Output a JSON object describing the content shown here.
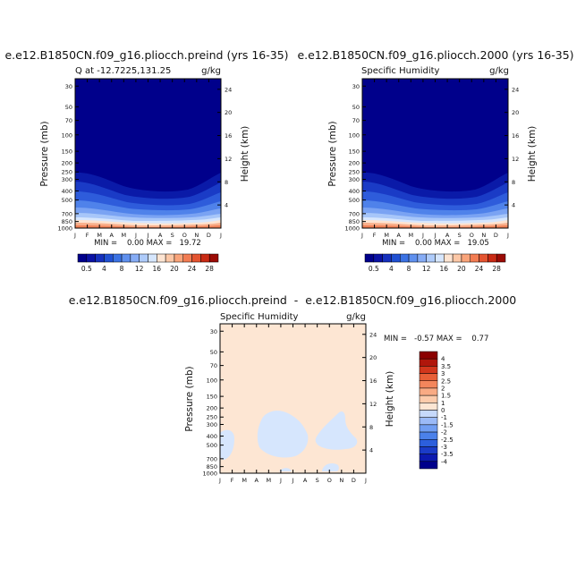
{
  "colors": {
    "seq_scale": [
      "#00008b",
      "#0a12a4",
      "#1530bd",
      "#2050d2",
      "#3b72e3",
      "#5f90ee",
      "#86acf5",
      "#aecbfa",
      "#d6e6fd",
      "#fde4d2",
      "#fcc7a6",
      "#f9a47a",
      "#f27c52",
      "#e45430",
      "#c92a14",
      "#9b0b05"
    ],
    "diff_scale": [
      "#00008b",
      "#0c1ab0",
      "#1b3cc8",
      "#2c5fdc",
      "#4b81ea",
      "#719ef2",
      "#9bbaf7",
      "#c6d9fb",
      "#fde6d3",
      "#fccbab",
      "#f9ab84",
      "#f3865c",
      "#e85f37",
      "#d2361c",
      "#b0160b",
      "#8b0000"
    ],
    "diff_fill": "#fde6d3",
    "diff_neg": "#d6e6fd"
  },
  "chart_data": [
    {
      "type": "contour",
      "title": "e.e12.B1850CN.f09_g16.pliocch.preind (yrs 16-35)",
      "subtitle_left": "Q at -12.7225,131.25",
      "subtitle_right": "g/kg",
      "xlabel": "",
      "ylabel": "Pressure (mb)",
      "y2label": "Height (km)",
      "x_ticks": [
        "J",
        "F",
        "M",
        "A",
        "M",
        "J",
        "J",
        "A",
        "S",
        "O",
        "N",
        "D",
        "J"
      ],
      "y_ticks": [
        "30",
        "50",
        "70",
        "100",
        "150",
        "200",
        "250",
        "300",
        "400",
        "500",
        "700",
        "850",
        "1000"
      ],
      "y2_ticks": [
        "24",
        "20",
        "16",
        "12",
        "8",
        "4"
      ],
      "min_label": "MIN =    0.00 MAX =   19.72",
      "levels": [
        "0.5",
        "4",
        "8",
        "12",
        "16",
        "20",
        "24",
        "28"
      ],
      "min": 0.0,
      "max": 19.72
    },
    {
      "type": "contour",
      "title": "e.e12.B1850CN.f09_g16.pliocch.2000 (yrs 16-35)",
      "subtitle_left": "Specific Humidity",
      "subtitle_right": "g/kg",
      "xlabel": "",
      "ylabel": "Pressure (mb)",
      "y2label": "Height (km)",
      "x_ticks": [
        "J",
        "F",
        "M",
        "A",
        "M",
        "J",
        "J",
        "A",
        "S",
        "O",
        "N",
        "D",
        "J"
      ],
      "y_ticks": [
        "30",
        "50",
        "70",
        "100",
        "150",
        "200",
        "250",
        "300",
        "400",
        "500",
        "700",
        "850",
        "1000"
      ],
      "y2_ticks": [
        "24",
        "20",
        "16",
        "12",
        "8",
        "4"
      ],
      "min_label": "MIN =    0.00 MAX =   19.05",
      "levels": [
        "0.5",
        "4",
        "8",
        "12",
        "16",
        "20",
        "24",
        "28"
      ],
      "min": 0.0,
      "max": 19.05
    },
    {
      "type": "contour",
      "title": "e.e12.B1850CN.f09_g16.pliocch.preind  -  e.e12.B1850CN.f09_g16.pliocch.2000",
      "subtitle_left": "Specific Humidity",
      "subtitle_right": "g/kg",
      "xlabel": "",
      "ylabel": "Pressure (mb)",
      "y2label": "Height (km)",
      "x_ticks": [
        "J",
        "F",
        "M",
        "A",
        "M",
        "J",
        "J",
        "A",
        "S",
        "O",
        "N",
        "D",
        "J"
      ],
      "y_ticks": [
        "30",
        "50",
        "70",
        "100",
        "150",
        "200",
        "250",
        "300",
        "400",
        "500",
        "700",
        "850",
        "1000"
      ],
      "y2_ticks": [
        "24",
        "20",
        "16",
        "12",
        "8",
        "4"
      ],
      "min_label": "MIN =   -0.57 MAX =    0.77",
      "levels": [
        "4",
        "3.5",
        "3",
        "2.5",
        "2",
        "1.5",
        "1",
        "0",
        "-1",
        "-1.5",
        "-2",
        "-2.5",
        "-3",
        "-3.5",
        "-4"
      ],
      "min": -0.57,
      "max": 0.77
    }
  ]
}
